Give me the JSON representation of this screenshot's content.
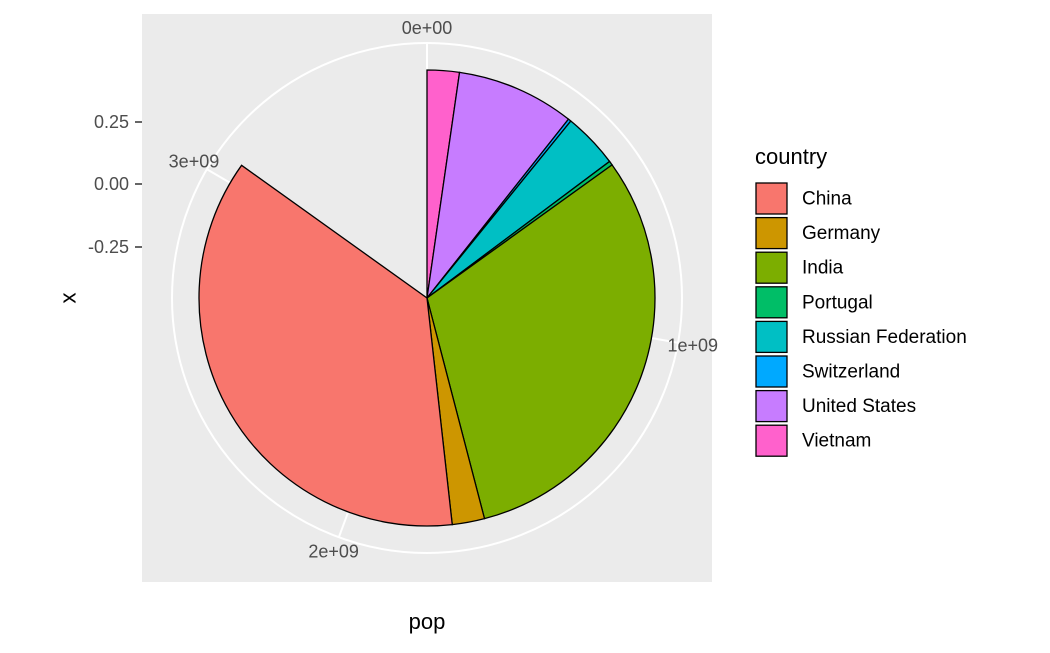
{
  "chart_data": {
    "type": "pie",
    "title": "",
    "xlabel": "pop",
    "ylabel": "x",
    "legend_title": "country",
    "legend_position": "right",
    "radial_ticks": [
      "0e+00",
      "1e+09",
      "2e+09",
      "3e+09"
    ],
    "y_ticks": [
      "0.25",
      "0.00",
      "-0.25"
    ],
    "theta_max": 3596000000,
    "slices": [
      {
        "category": "Vietnam",
        "value": 82000000,
        "color": "#FF61CC"
      },
      {
        "category": "United States",
        "value": 301000000,
        "color": "#C77CFF"
      },
      {
        "category": "Switzerland",
        "value": 7500000,
        "color": "#00A9FF"
      },
      {
        "category": "Russian Federation",
        "value": 141000000,
        "color": "#00BFC4"
      },
      {
        "category": "Portugal",
        "value": 10600000,
        "color": "#00BE67"
      },
      {
        "category": "India",
        "value": 1110000000,
        "color": "#7CAE00"
      },
      {
        "category": "Germany",
        "value": 82400000,
        "color": "#CD9600"
      },
      {
        "category": "China",
        "value": 1318000000,
        "color": "#F8766D"
      }
    ],
    "legend_order": [
      "China",
      "Germany",
      "India",
      "Portugal",
      "Russian Federation",
      "Switzerland",
      "United States",
      "Vietnam"
    ],
    "colors": {
      "panel_background": "#EBEBEB",
      "grid": "#FFFFFF",
      "slice_outline": "#000000",
      "axis_text": "#4D4D4D",
      "axis_title": "#000000"
    }
  }
}
